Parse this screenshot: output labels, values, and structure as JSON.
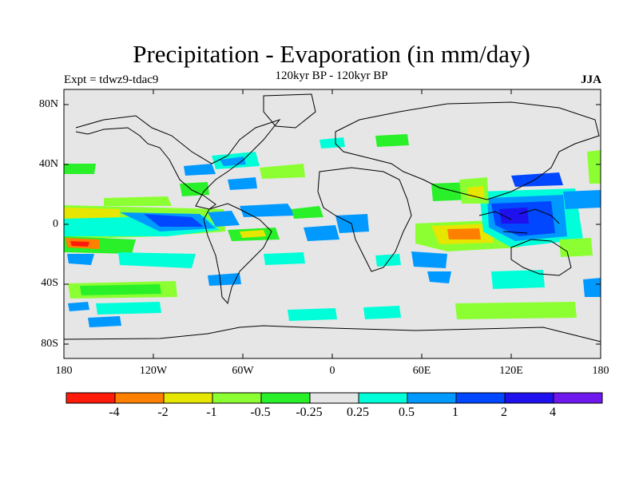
{
  "header": {
    "title": "Precipitation - Evaporation (in mm/day)",
    "subtitle": "120kyr BP - 120kyr BP",
    "experiment": "Expt = tdwz9-tdac9",
    "season": "JJA"
  },
  "axes": {
    "lat_ticks": [
      "80N",
      "40N",
      "0",
      "40S",
      "80S"
    ],
    "lon_ticks": [
      "180",
      "120W",
      "60W",
      "0",
      "60E",
      "120E",
      "180"
    ]
  },
  "colorbar": {
    "labels": [
      "-4",
      "-2",
      "-1",
      "-0.5",
      "-0.25",
      "0.25",
      "0.5",
      "1",
      "2",
      "4"
    ],
    "colors": [
      "#ff1a0a",
      "#ff8000",
      "#e6e600",
      "#8cff33",
      "#29f029",
      "#e6e6e6",
      "#00ffd9",
      "#0099ff",
      "#0047ff",
      "#1f10ee",
      "#7019ee"
    ]
  },
  "palette": {
    "ocean_background": "#e6e6e6",
    "coastline": "#000000"
  }
}
